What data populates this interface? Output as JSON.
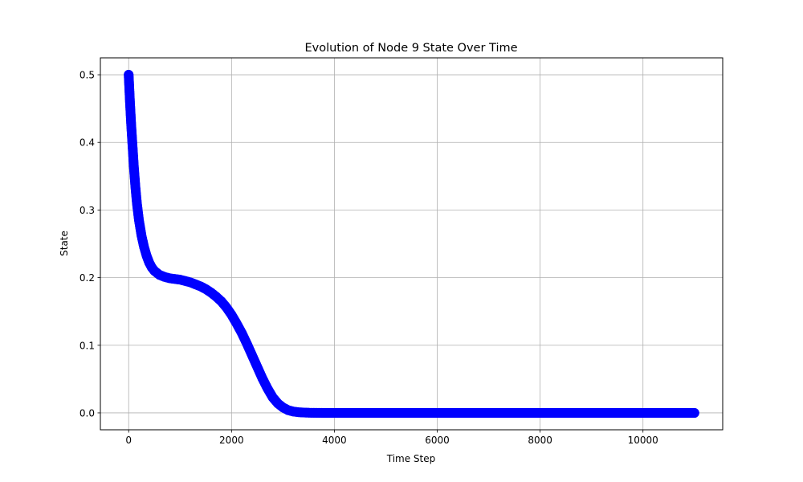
{
  "chart_data": {
    "type": "scatter",
    "title": "Evolution of Node 9 State Over Time",
    "xlabel": "Time Step",
    "ylabel": "State",
    "xlim": [
      -550,
      11550
    ],
    "ylim": [
      -0.025,
      0.525
    ],
    "x_ticks": [
      0,
      2000,
      4000,
      6000,
      8000,
      10000
    ],
    "x_tick_labels": [
      "0",
      "2000",
      "4000",
      "6000",
      "8000",
      "10000"
    ],
    "y_ticks": [
      0.0,
      0.1,
      0.2,
      0.3,
      0.4,
      0.5
    ],
    "y_tick_labels": [
      "0.0",
      "0.1",
      "0.2",
      "0.3",
      "0.4",
      "0.5"
    ],
    "grid": true,
    "marker": "circle",
    "series": [
      {
        "color": "#0000ff",
        "x": [
          0,
          25,
          50,
          75,
          100,
          130,
          160,
          200,
          250,
          300,
          350,
          400,
          450,
          500,
          600,
          700,
          800,
          900,
          1000,
          1100,
          1200,
          1300,
          1400,
          1500,
          1600,
          1700,
          1800,
          1900,
          2000,
          2100,
          2200,
          2300,
          2400,
          2500,
          2600,
          2700,
          2800,
          2900,
          3000,
          3100,
          3200,
          3300,
          3400,
          3500,
          3600,
          3800,
          4000,
          4500,
          5000,
          5500,
          6000,
          6500,
          7000,
          7500,
          8000,
          8500,
          9000,
          9500,
          10000,
          10500,
          11000
        ],
        "y": [
          0.5,
          0.46,
          0.425,
          0.395,
          0.365,
          0.335,
          0.31,
          0.285,
          0.262,
          0.245,
          0.232,
          0.222,
          0.215,
          0.21,
          0.204,
          0.201,
          0.199,
          0.198,
          0.197,
          0.195,
          0.193,
          0.19,
          0.187,
          0.183,
          0.178,
          0.172,
          0.165,
          0.156,
          0.145,
          0.132,
          0.118,
          0.102,
          0.085,
          0.068,
          0.051,
          0.036,
          0.023,
          0.014,
          0.008,
          0.004,
          0.002,
          0.001,
          0.0005,
          0.0002,
          0.0001,
          0.0,
          0.0,
          0.0,
          0.0,
          0.0,
          0.0,
          0.0,
          0.0,
          0.0,
          0.0,
          0.0,
          0.0,
          0.0,
          0.0,
          0.0,
          0.0
        ]
      }
    ]
  }
}
